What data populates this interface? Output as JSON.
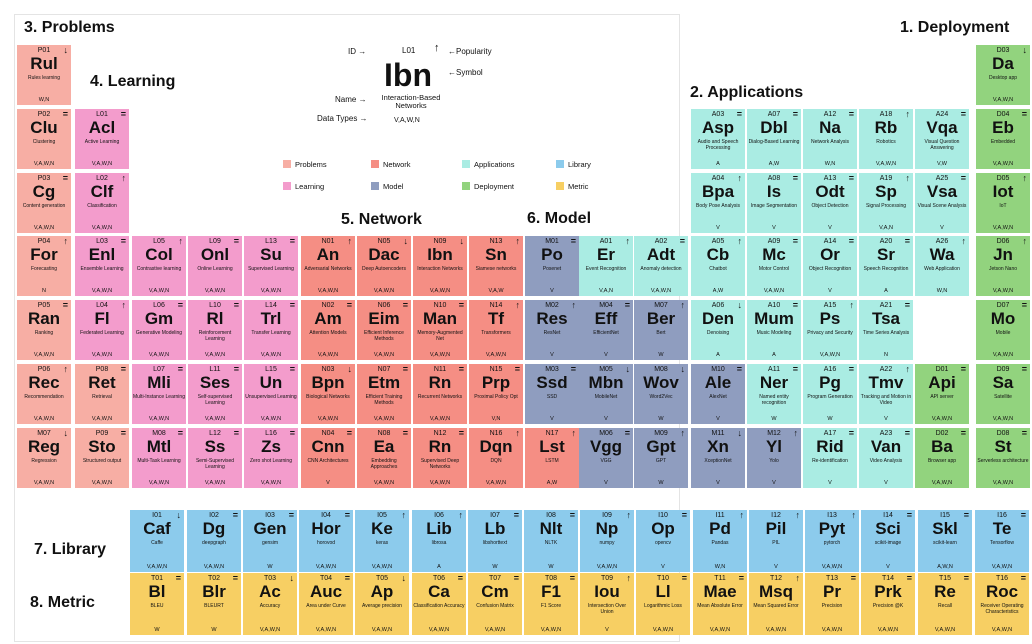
{
  "colors": {
    "problems": "#f7aea4",
    "network": "#f58e84",
    "applications": "#aaece3",
    "library": "#8ccbec",
    "learning": "#f39ccc",
    "model": "#8f9dbf",
    "deployment": "#92d37e",
    "metric": "#f7cf63"
  },
  "sections": {
    "s1": "1. Deployment",
    "s2": "2. Applications",
    "s3": "3. Problems",
    "s4": "4. Learning",
    "s5": "5. Network",
    "s6": "6. Model",
    "s7": "7. Library",
    "s8": "8. Metric"
  },
  "key": {
    "id_label": "ID →",
    "id": "L01",
    "pop": "↑",
    "pop_label": "←Popularity",
    "symbol": "Ibn",
    "symbol_label": "←Symbol",
    "name_label": "Name →",
    "name": "Interaction-Based Networks",
    "dt_label": "Data Types →",
    "dt": "V,A,W,N"
  },
  "legend": [
    "Problems",
    "Network",
    "Applications",
    "Library",
    "Learning",
    "Model",
    "Deployment",
    "Metric"
  ],
  "cells": [
    {
      "c": "problems",
      "id": "P01",
      "p": "↓",
      "s": "Rul",
      "n": "Rules learning",
      "d": "W,N"
    },
    {
      "c": "problems",
      "id": "P02",
      "p": "",
      "s": "Clu",
      "n": "Clustering",
      "d": "V,A,W,N"
    },
    {
      "c": "problems",
      "id": "P03",
      "p": "",
      "s": "Cg",
      "n": "Content generation",
      "d": "V,A,W,N"
    },
    {
      "c": "problems",
      "id": "P04",
      "p": "↑",
      "s": "For",
      "n": "Forecasting",
      "d": "N"
    },
    {
      "c": "problems",
      "id": "P05",
      "p": "",
      "s": "Ran",
      "n": "Ranking",
      "d": "V,A,W,N"
    },
    {
      "c": "problems",
      "id": "P06",
      "p": "↑",
      "s": "Rec",
      "n": "Recommendation",
      "d": "V,A,W,N"
    },
    {
      "c": "problems",
      "id": "M07",
      "p": "↓",
      "s": "Reg",
      "n": "Regression",
      "d": "V,A,W,N"
    },
    {
      "c": "learning",
      "id": "L01",
      "p": "",
      "s": "Acl",
      "n": "Active Learning",
      "d": "V,A,W,N"
    },
    {
      "c": "learning",
      "id": "L02",
      "p": "↑",
      "s": "Clf",
      "n": "Classification",
      "d": "V,A,W,N"
    },
    {
      "c": "learning",
      "id": "L03",
      "p": "",
      "s": "Enl",
      "n": "Ensemble Learning",
      "d": "V,A,W,N"
    },
    {
      "c": "learning",
      "id": "L04",
      "p": "↑",
      "s": "Fl",
      "n": "Federated Learning",
      "d": "V,A,W,N"
    },
    {
      "c": "problems",
      "id": "P08",
      "p": "",
      "s": "Ret",
      "n": "Retrieval",
      "d": "V,A,W,N"
    },
    {
      "c": "problems",
      "id": "P09",
      "p": "",
      "s": "Sto",
      "n": "Structured output",
      "d": "V,A,W,N"
    },
    {
      "c": "learning",
      "id": "L05",
      "p": "↑",
      "s": "Col",
      "n": "Contrastive learning",
      "d": "V,A,W,N"
    },
    {
      "c": "learning",
      "id": "L06",
      "p": "",
      "s": "Gm",
      "n": "Generative Modeling",
      "d": "V,A,W,N"
    },
    {
      "c": "learning",
      "id": "L07",
      "p": "",
      "s": "Mli",
      "n": "Multi-Instance Learning",
      "d": "V,A,W,N"
    },
    {
      "c": "learning",
      "id": "M08",
      "p": "",
      "s": "Mtl",
      "n": "Multi-Task Learning",
      "d": "V,A,W,N"
    },
    {
      "c": "learning",
      "id": "L09",
      "p": "",
      "s": "Onl",
      "n": "Online Learning",
      "d": "V,A,W,N"
    },
    {
      "c": "learning",
      "id": "L10",
      "p": "",
      "s": "Rl",
      "n": "Reinforcement Learning",
      "d": "V,A,W,N"
    },
    {
      "c": "learning",
      "id": "L11",
      "p": "",
      "s": "Ses",
      "n": "Self-supervised Learning",
      "d": "V,A,W,N"
    },
    {
      "c": "learning",
      "id": "L12",
      "p": "",
      "s": "Ss",
      "n": "Semi-Supervised Learning",
      "d": "V,A,W,N"
    },
    {
      "c": "learning",
      "id": "L13",
      "p": "",
      "s": "Su",
      "n": "Supervised Learning",
      "d": "V,A,W,N"
    },
    {
      "c": "learning",
      "id": "L14",
      "p": "",
      "s": "Trl",
      "n": "Transfer Learning",
      "d": "V,A,W,N"
    },
    {
      "c": "learning",
      "id": "L15",
      "p": "",
      "s": "Un",
      "n": "Unsupervised Learning",
      "d": "V,A,W,N"
    },
    {
      "c": "learning",
      "id": "L16",
      "p": "",
      "s": "Zs",
      "n": "Zero shot Learning",
      "d": "V,A,W,N"
    },
    {
      "c": "network",
      "id": "N01",
      "p": "↑",
      "s": "An",
      "n": "Adversarial Networks",
      "d": "V,A,W,N"
    },
    {
      "c": "network",
      "id": "N02",
      "p": "",
      "s": "Am",
      "n": "Attention Models",
      "d": "V,A,W,N"
    },
    {
      "c": "network",
      "id": "N03",
      "p": "↓",
      "s": "Bpn",
      "n": "Biological Networks",
      "d": "V,A,W,N"
    },
    {
      "c": "network",
      "id": "N04",
      "p": "",
      "s": "Cnn",
      "n": "CNN Architectures",
      "d": "V"
    },
    {
      "c": "network",
      "id": "N05",
      "p": "↓",
      "s": "Dac",
      "n": "Deep Autoencoders",
      "d": "V,A,W,N"
    },
    {
      "c": "network",
      "id": "N06",
      "p": "",
      "s": "Eim",
      "n": "Efficient Inference Methods",
      "d": "V,A,W,N"
    },
    {
      "c": "network",
      "id": "N07",
      "p": "",
      "s": "Etm",
      "n": "Efficient Training Methods",
      "d": "V,A,W,N"
    },
    {
      "c": "network",
      "id": "N08",
      "p": "",
      "s": "Ea",
      "n": "Embedding Approaches",
      "d": "V,A,W,N"
    },
    {
      "c": "network",
      "id": "N09",
      "p": "↓",
      "s": "Ibn",
      "n": "Interaction Networks",
      "d": "V,A,W,N"
    },
    {
      "c": "network",
      "id": "N10",
      "p": "",
      "s": "Man",
      "n": "Memory-Augmented Net",
      "d": "V,A,W,N"
    },
    {
      "c": "network",
      "id": "N11",
      "p": "",
      "s": "Rn",
      "n": "Recurrent Networks",
      "d": "V,A,W,N"
    },
    {
      "c": "network",
      "id": "N12",
      "p": "",
      "s": "Rn",
      "n": "Supervised Deep Networks",
      "d": "V,A,W,N"
    },
    {
      "c": "network",
      "id": "N13",
      "p": "↑",
      "s": "Sn",
      "n": "Siamese networks",
      "d": "V,A,W"
    },
    {
      "c": "network",
      "id": "N14",
      "p": "↑",
      "s": "Tf",
      "n": "Transformers",
      "d": "V,A,W,N"
    },
    {
      "c": "network",
      "id": "N15",
      "p": "",
      "s": "Prp",
      "n": "Proximal Policy Opt",
      "d": "V,N"
    },
    {
      "c": "network",
      "id": "N16",
      "p": "↑",
      "s": "Dqn",
      "n": "DQN",
      "d": "V,A,W,N"
    },
    {
      "c": "model",
      "id": "M01",
      "p": "",
      "s": "Po",
      "n": "Posenet",
      "d": "V"
    },
    {
      "c": "model",
      "id": "M02",
      "p": "↑",
      "s": "Res",
      "n": "ResNet",
      "d": "V"
    },
    {
      "c": "model",
      "id": "M03",
      "p": "",
      "s": "Ssd",
      "n": "SSD",
      "d": "V"
    },
    {
      "c": "network",
      "id": "N17",
      "p": "↑",
      "s": "Lst",
      "n": "LSTM",
      "d": "A,W"
    },
    {
      "c": "applications",
      "id": "A01",
      "p": "↑",
      "s": "Er",
      "n": "Event Recognition",
      "d": "V,A,N"
    },
    {
      "c": "model",
      "id": "M04",
      "p": "",
      "s": "Eff",
      "n": "EfficientNet",
      "d": "V"
    },
    {
      "c": "model",
      "id": "M05",
      "p": "↓",
      "s": "Mbn",
      "n": "MobileNet",
      "d": "V"
    },
    {
      "c": "model",
      "id": "M06",
      "p": "",
      "s": "Vgg",
      "n": "VGG",
      "d": "V"
    },
    {
      "c": "applications",
      "id": "A02",
      "p": "",
      "s": "Adt",
      "n": "Anomaly detection",
      "d": "V,A,W,N"
    },
    {
      "c": "model",
      "id": "M07",
      "p": "↑",
      "s": "Ber",
      "n": "Bert",
      "d": "W"
    },
    {
      "c": "model",
      "id": "M08",
      "p": "↓",
      "s": "Wov",
      "n": "Word2Vec",
      "d": "W"
    },
    {
      "c": "model",
      "id": "M09",
      "p": "↑",
      "s": "Gpt",
      "n": "GPT",
      "d": "W"
    },
    {
      "c": "applications",
      "id": "A03",
      "p": "",
      "s": "Asp",
      "n": "Audio and Speech Processing",
      "d": "A"
    },
    {
      "c": "applications",
      "id": "A04",
      "p": "↑",
      "s": "Bpa",
      "n": "Body Pose Analysis",
      "d": "V"
    },
    {
      "c": "applications",
      "id": "A05",
      "p": "↑",
      "s": "Cb",
      "n": "Chatbot",
      "d": "A,W"
    },
    {
      "c": "applications",
      "id": "A06",
      "p": "↓",
      "s": "Den",
      "n": "Denoising",
      "d": "A"
    },
    {
      "c": "model",
      "id": "M10",
      "p": "",
      "s": "Ale",
      "n": "AlexNet",
      "d": "V"
    },
    {
      "c": "model",
      "id": "M11",
      "p": "↓",
      "s": "Xn",
      "n": "XceptionNet",
      "d": "V"
    },
    {
      "c": "applications",
      "id": "A07",
      "p": "",
      "s": "Dbl",
      "n": "Dialog-Based Learning",
      "d": "A,W"
    },
    {
      "c": "applications",
      "id": "A08",
      "p": "",
      "s": "Is",
      "n": "Image Segmentation",
      "d": "V"
    },
    {
      "c": "applications",
      "id": "A09",
      "p": "",
      "s": "Mc",
      "n": "Motor Control",
      "d": "V,A,W,N"
    },
    {
      "c": "applications",
      "id": "A10",
      "p": "",
      "s": "Mum",
      "n": "Music Modeling",
      "d": "A"
    },
    {
      "c": "applications",
      "id": "A11",
      "p": "",
      "s": "Ner",
      "n": "Named entity recognition",
      "d": "W"
    },
    {
      "c": "model",
      "id": "M12",
      "p": "↑",
      "s": "Yl",
      "n": "Yolo",
      "d": "V"
    },
    {
      "c": "applications",
      "id": "A12",
      "p": "",
      "s": "Na",
      "n": "Network Analysis",
      "d": "W,N"
    },
    {
      "c": "applications",
      "id": "A13",
      "p": "",
      "s": "Odt",
      "n": "Object Detection",
      "d": "V"
    },
    {
      "c": "applications",
      "id": "A14",
      "p": "",
      "s": "Or",
      "n": "Object Recognition",
      "d": "V"
    },
    {
      "c": "applications",
      "id": "A15",
      "p": "↑",
      "s": "Ps",
      "n": "Privacy and Security",
      "d": "V,A,W,N"
    },
    {
      "c": "applications",
      "id": "A16",
      "p": "",
      "s": "Pg",
      "n": "Program Generation",
      "d": "W"
    },
    {
      "c": "applications",
      "id": "A17",
      "p": "",
      "s": "Rid",
      "n": "Re-identification",
      "d": "V"
    },
    {
      "c": "applications",
      "id": "A18",
      "p": "↑",
      "s": "Rb",
      "n": "Robotics",
      "d": "V,A,W,N"
    },
    {
      "c": "applications",
      "id": "A19",
      "p": "↑",
      "s": "Sp",
      "n": "Signal Processing",
      "d": "V,A,N"
    },
    {
      "c": "applications",
      "id": "A20",
      "p": "",
      "s": "Sr",
      "n": "Speech Recognition",
      "d": "A"
    },
    {
      "c": "applications",
      "id": "A21",
      "p": "",
      "s": "Tsa",
      "n": "Time Series Analysis",
      "d": "N"
    },
    {
      "c": "applications",
      "id": "A22",
      "p": "↑",
      "s": "Tmv",
      "n": "Tracking and Motion in Video",
      "d": "V"
    },
    {
      "c": "applications",
      "id": "A23",
      "p": "",
      "s": "Van",
      "n": "Video Analysis",
      "d": "V"
    },
    {
      "c": "applications",
      "id": "A24",
      "p": "",
      "s": "Vqa",
      "n": "Visual Question Answering",
      "d": "V,W"
    },
    {
      "c": "applications",
      "id": "A25",
      "p": "",
      "s": "Vsa",
      "n": "Visual Scene Analysis",
      "d": "V"
    },
    {
      "c": "applications",
      "id": "A26",
      "p": "↑",
      "s": "Wa",
      "n": "Web Application",
      "d": "W,N"
    },
    {
      "c": "deployment",
      "id": "D01",
      "p": "",
      "s": "Api",
      "n": "API server",
      "d": "V,A,W,N"
    },
    {
      "c": "deployment",
      "id": "D02",
      "p": "",
      "s": "Ba",
      "n": "Browser app",
      "d": "V,A,W,N"
    },
    {
      "c": "deployment",
      "id": "D03",
      "p": "↓",
      "s": "Da",
      "n": "Desktop app",
      "d": "V,A,W,N"
    },
    {
      "c": "deployment",
      "id": "D04",
      "p": "",
      "s": "Eb",
      "n": "Embedded",
      "d": "V,A,W,N"
    },
    {
      "c": "deployment",
      "id": "D05",
      "p": "↑",
      "s": "Iot",
      "n": "IoT",
      "d": "V,A,W,N"
    },
    {
      "c": "deployment",
      "id": "D06",
      "p": "↑",
      "s": "Jn",
      "n": "Jetson Nano",
      "d": "V,A,W,N"
    },
    {
      "c": "deployment",
      "id": "D07",
      "p": "",
      "s": "Mo",
      "n": "Mobile",
      "d": "V,A,W,N"
    },
    {
      "c": "deployment",
      "id": "D09",
      "p": "",
      "s": "Sa",
      "n": "Satellite",
      "d": "V,A,W,N"
    },
    {
      "c": "deployment",
      "id": "D08",
      "p": "",
      "s": "St",
      "n": "Serverless architecture",
      "d": "V,A,W,N"
    },
    {
      "c": "library",
      "id": "I01",
      "p": "↓",
      "s": "Caf",
      "n": "Caffe",
      "d": "V,A,W,N"
    },
    {
      "c": "library",
      "id": "I02",
      "p": "",
      "s": "Dg",
      "n": "deepgraph",
      "d": "V,A,W,N"
    },
    {
      "c": "library",
      "id": "I03",
      "p": "",
      "s": "Gen",
      "n": "gensim",
      "d": "W"
    },
    {
      "c": "library",
      "id": "I04",
      "p": "",
      "s": "Hor",
      "n": "horovod",
      "d": "V,A,W,N"
    },
    {
      "c": "library",
      "id": "I05",
      "p": "↑",
      "s": "Ke",
      "n": "keras",
      "d": "V,A,W,N"
    },
    {
      "c": "library",
      "id": "I06",
      "p": "↑",
      "s": "Lib",
      "n": "librosa",
      "d": "A"
    },
    {
      "c": "library",
      "id": "I07",
      "p": "",
      "s": "Lb",
      "n": "libshorttext",
      "d": "W"
    },
    {
      "c": "library",
      "id": "I08",
      "p": "",
      "s": "Nlt",
      "n": "NLTK",
      "d": "W"
    },
    {
      "c": "library",
      "id": "I09",
      "p": "↑",
      "s": "Np",
      "n": "numpy",
      "d": "V,A,W,N"
    },
    {
      "c": "library",
      "id": "I10",
      "p": "",
      "s": "Op",
      "n": "opencv",
      "d": "V"
    },
    {
      "c": "library",
      "id": "I11",
      "p": "↑",
      "s": "Pd",
      "n": "Pandas",
      "d": "W,N"
    },
    {
      "c": "library",
      "id": "I12",
      "p": "↑",
      "s": "Pil",
      "n": "PIL",
      "d": "V"
    },
    {
      "c": "library",
      "id": "I13",
      "p": "↑",
      "s": "Pyt",
      "n": "pytorch",
      "d": "V,A,W,N"
    },
    {
      "c": "library",
      "id": "I14",
      "p": "",
      "s": "Sci",
      "n": "scikit-image",
      "d": "V"
    },
    {
      "c": "library",
      "id": "I15",
      "p": "",
      "s": "Skl",
      "n": "scikit-learn",
      "d": "A,W,N"
    },
    {
      "c": "library",
      "id": "I16",
      "p": "",
      "s": "Te",
      "n": "Tensorflow",
      "d": "V,A,W,N"
    },
    {
      "c": "metric",
      "id": "T01",
      "p": "",
      "s": "Bl",
      "n": "BLEU",
      "d": "W"
    },
    {
      "c": "metric",
      "id": "T02",
      "p": "",
      "s": "Blr",
      "n": "BLEURT",
      "d": "W"
    },
    {
      "c": "metric",
      "id": "T03",
      "p": "↓",
      "s": "Ac",
      "n": "Accuracy",
      "d": "V,A,W,N"
    },
    {
      "c": "metric",
      "id": "T04",
      "p": "",
      "s": "Auc",
      "n": "Area under Curve",
      "d": "V,A,W,N"
    },
    {
      "c": "metric",
      "id": "T05",
      "p": "↓",
      "s": "Ap",
      "n": "Average precision",
      "d": "V,A,W,N"
    },
    {
      "c": "metric",
      "id": "T06",
      "p": "",
      "s": "Ca",
      "n": "Classification Accuracy",
      "d": "V,A,W,N"
    },
    {
      "c": "metric",
      "id": "T07",
      "p": "",
      "s": "Cm",
      "n": "Confusion Matrix",
      "d": "V,A,W,N"
    },
    {
      "c": "metric",
      "id": "T08",
      "p": "",
      "s": "F1",
      "n": "F1 Score",
      "d": "V,A,W,N"
    },
    {
      "c": "metric",
      "id": "T09",
      "p": "↑",
      "s": "Iou",
      "n": "Intersection Over Union",
      "d": "V"
    },
    {
      "c": "metric",
      "id": "T10",
      "p": "",
      "s": "Ll",
      "n": "Logarithmic Loss",
      "d": "V,A,W,N"
    },
    {
      "c": "metric",
      "id": "T11",
      "p": "",
      "s": "Mae",
      "n": "Mean Absolute Error",
      "d": "V,A,W,N"
    },
    {
      "c": "metric",
      "id": "T12",
      "p": "↑",
      "s": "Msq",
      "n": "Mean Squared Error",
      "d": "V,A,W,N"
    },
    {
      "c": "metric",
      "id": "T13",
      "p": "",
      "s": "Pr",
      "n": "Precision",
      "d": "V,A,W,N"
    },
    {
      "c": "metric",
      "id": "T14",
      "p": "",
      "s": "Prk",
      "n": "Precision @K",
      "d": "V,A,W,N"
    },
    {
      "c": "metric",
      "id": "T15",
      "p": "",
      "s": "Re",
      "n": "Recall",
      "d": "V,A,W,N"
    },
    {
      "c": "metric",
      "id": "T16",
      "p": "",
      "s": "Roc",
      "n": "Receiver Operating Characteristics",
      "d": "V,A,W,N"
    }
  ]
}
